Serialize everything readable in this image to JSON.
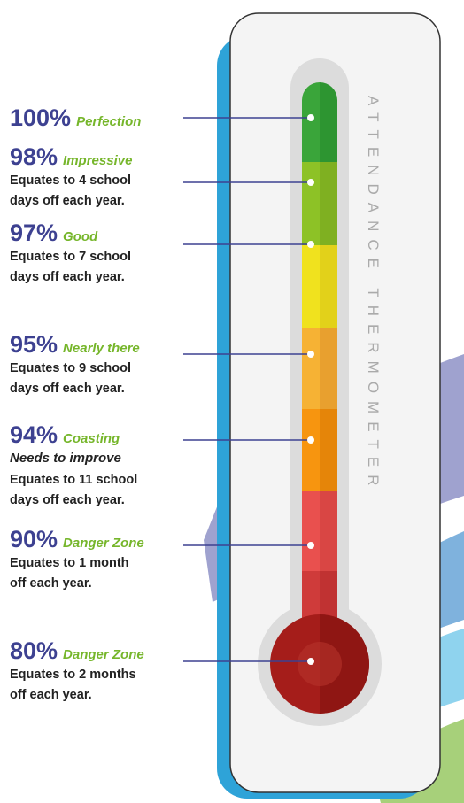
{
  "title": "ATTENDANCE THERMOMETER",
  "levels": [
    {
      "percent": "100%",
      "label": "Perfection"
    },
    {
      "percent": "98%",
      "label": "Impressive",
      "lines": [
        "Equates to 4 school",
        "days off each year."
      ]
    },
    {
      "percent": "97%",
      "label": "Good",
      "lines": [
        "Equates to 7 school",
        "days off each year."
      ]
    },
    {
      "percent": "95%",
      "label": "Nearly there",
      "lines": [
        "Equates to 9 school",
        "days off each year."
      ]
    },
    {
      "percent": "94%",
      "label": "Coasting",
      "note": "Needs to improve",
      "lines": [
        "Equates to 11 school",
        "days off each year."
      ]
    },
    {
      "percent": "90%",
      "label": "Danger Zone",
      "lines": [
        "Equates to 1 month",
        "off each year."
      ]
    },
    {
      "percent": "80%",
      "label": "Danger Zone",
      "lines": [
        "Equates to 2 months",
        "off each year."
      ]
    }
  ]
}
